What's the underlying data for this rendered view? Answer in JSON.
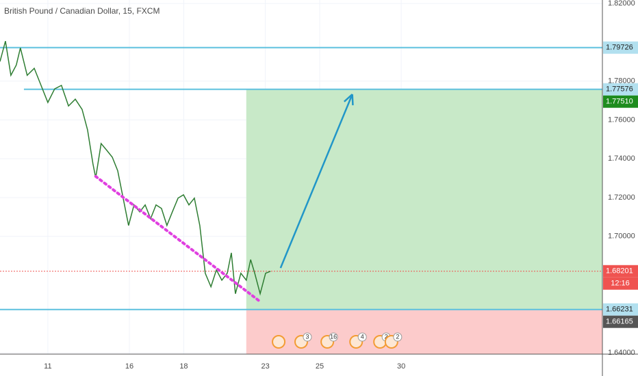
{
  "chart_data": {
    "type": "line",
    "title": "British Pound / Canadian Dollar, 15, FXCM",
    "xlim": [
      -1.76,
      20.4
    ],
    "ylim": [
      1.6393,
      1.8218
    ],
    "xticks": [
      {
        "value": 0,
        "label": "11"
      },
      {
        "value": 3,
        "label": "16"
      },
      {
        "value": 5,
        "label": "18"
      },
      {
        "value": 8,
        "label": "23"
      },
      {
        "value": 10,
        "label": "25"
      },
      {
        "value": 13,
        "label": "30"
      }
    ],
    "yticks": [
      {
        "value": 1.82,
        "label": "1.82000"
      },
      {
        "value": 1.78,
        "label": "1.78000"
      },
      {
        "value": 1.76,
        "label": "1.76000"
      },
      {
        "value": 1.74,
        "label": "1.74000"
      },
      {
        "value": 1.72,
        "label": "1.72000"
      },
      {
        "value": 1.7,
        "label": "1.70000"
      },
      {
        "value": 1.64,
        "label": "1.64000"
      }
    ],
    "series": [
      {
        "color": "#2e7d32",
        "x": [
          -1.76,
          -1.56,
          -1.36,
          -1.16,
          -1.01,
          -0.76,
          -0.5,
          -0.25,
          0,
          0.25,
          0.5,
          0.76,
          1.01,
          1.26,
          1.46,
          1.66,
          1.76,
          1.96,
          2.17,
          2.37,
          2.57,
          2.77,
          2.97,
          3.17,
          3.38,
          3.58,
          3.78,
          3.98,
          4.18,
          4.38,
          4.58,
          4.79,
          4.99,
          5.19,
          5.39,
          5.59,
          5.79,
          6.0,
          6.2,
          6.4,
          6.6,
          6.75,
          6.9,
          7.1,
          7.3,
          7.46,
          7.61,
          7.81,
          8.01,
          8.19
        ],
        "values": [
          1.7901,
          1.8006,
          1.783,
          1.7883,
          1.7971,
          1.783,
          1.7866,
          1.7778,
          1.769,
          1.776,
          1.7778,
          1.7672,
          1.7707,
          1.7654,
          1.7549,
          1.7373,
          1.7302,
          1.7478,
          1.7443,
          1.7408,
          1.7338,
          1.7197,
          1.7056,
          1.7162,
          1.7126,
          1.7162,
          1.7091,
          1.7162,
          1.7144,
          1.7056,
          1.7126,
          1.7197,
          1.7214,
          1.7162,
          1.7197,
          1.7056,
          1.681,
          1.674,
          1.6827,
          1.6774,
          1.681,
          1.6915,
          1.6704,
          1.681,
          1.6774,
          1.688,
          1.681,
          1.6704,
          1.681,
          1.682
        ]
      }
    ],
    "levels": [
      {
        "value": 1.79726,
        "label": "1.79726",
        "start": -1.76
      },
      {
        "value": 1.77576,
        "label": "1.77576",
        "start": -0.88
      },
      {
        "value": 1.66231,
        "label": "1.66231",
        "start": -1.76
      }
    ],
    "price_tags": [
      {
        "value": 1.7751,
        "label": "1.77510",
        "color": "#1e8c1e"
      },
      {
        "value": 1.68201,
        "label": "1.68201",
        "color": "#ef5350"
      },
      {
        "value": 1.66165,
        "label": "1.66165",
        "color": "#555555"
      }
    ],
    "countdown": "12:16",
    "position": {
      "start": 7.3,
      "target": 1.77576,
      "entry": 1.66231,
      "target_color": "#c8e9c8",
      "stop_color": "#fccbcb"
    },
    "arrow": {
      "x": [
        8.56,
        11.2
      ],
      "values": [
        1.6837,
        1.7732
      ],
      "color": "#2196c8"
    },
    "trendline": {
      "x": [
        1.76,
        7.76
      ],
      "values": [
        1.7309,
        1.6669
      ],
      "color": "#e040e0"
    },
    "events": [
      {
        "x": 8.49
      },
      {
        "x": 9.32,
        "count": 3
      },
      {
        "x": 10.28,
        "count": 16
      },
      {
        "x": 11.34,
        "count": 4
      },
      {
        "x": 12.22,
        "count": 2
      },
      {
        "x": 12.64,
        "count": 2
      }
    ]
  }
}
